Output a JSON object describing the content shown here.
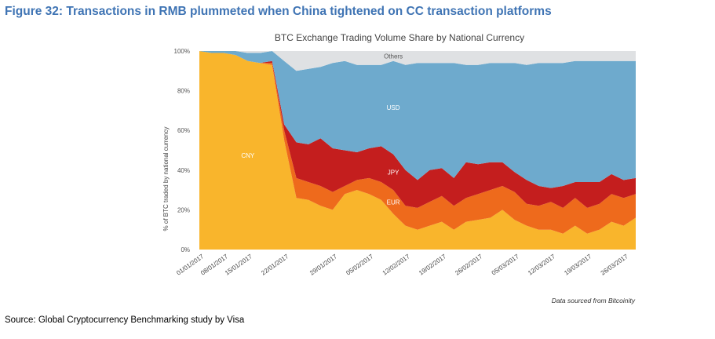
{
  "figure": {
    "title": "Figure 32: Transactions in RMB plummeted when China tightened on CC transaction platforms",
    "source": "Source: Global Cryptocurrency Benchmarking study by Visa"
  },
  "chart_data": {
    "type": "area",
    "stacked": true,
    "title": "BTC Exchange Trading Volume Share by National Currency",
    "ylabel": "% of BTC traded by national currency",
    "xlabel": "",
    "note": "Data sourced from Bitcoinity",
    "ylim": [
      0,
      100
    ],
    "yticks": [
      "0%",
      "20%",
      "40%",
      "60%",
      "80%",
      "100%"
    ],
    "x": [
      "01/01/2017",
      "04/01/2017",
      "08/01/2017",
      "12/01/2017",
      "15/01/2017",
      "18/01/2017",
      "20/01/2017",
      "22/01/2017",
      "23/01/2017",
      "25/01/2017",
      "27/01/2017",
      "29/01/2017",
      "31/01/2017",
      "02/02/2017",
      "05/02/2017",
      "08/02/2017",
      "10/02/2017",
      "12/02/2017",
      "15/02/2017",
      "17/02/2017",
      "19/02/2017",
      "22/02/2017",
      "24/02/2017",
      "26/02/2017",
      "01/03/2017",
      "03/03/2017",
      "05/03/2017",
      "08/03/2017",
      "10/03/2017",
      "12/03/2017",
      "15/03/2017",
      "17/03/2017",
      "19/03/2017",
      "22/03/2017",
      "24/03/2017",
      "26/03/2017",
      "28/03/2017"
    ],
    "xticks": [
      "01/01/2017",
      "08/01/2017",
      "15/01/2017",
      "22/01/2017",
      "29/01/2017",
      "05/02/2017",
      "12/02/2017",
      "19/02/2017",
      "26/02/2017",
      "05/03/2017",
      "12/03/2017",
      "19/03/2017",
      "26/03/2017"
    ],
    "series": [
      {
        "name": "CNY",
        "color": "#f9b52c",
        "values": [
          100,
          99,
          99,
          98,
          95,
          94,
          93,
          55,
          26,
          25,
          22,
          20,
          28,
          30,
          28,
          25,
          18,
          12,
          10,
          12,
          14,
          10,
          14,
          15,
          16,
          20,
          15,
          12,
          10,
          10,
          8,
          12,
          8,
          10,
          14,
          12,
          16
        ]
      },
      {
        "name": "EUR",
        "color": "#ee6a1c",
        "values": [
          0,
          0,
          0,
          0,
          0,
          0,
          1,
          5,
          10,
          9,
          10,
          9,
          4,
          5,
          8,
          9,
          12,
          10,
          11,
          12,
          13,
          12,
          12,
          13,
          14,
          12,
          14,
          11,
          12,
          14,
          13,
          14,
          13,
          13,
          14,
          14,
          12
        ]
      },
      {
        "name": "JPY",
        "color": "#c41e1e",
        "values": [
          0,
          0,
          0,
          0,
          0,
          0,
          1,
          3,
          18,
          19,
          24,
          22,
          18,
          14,
          15,
          18,
          18,
          18,
          14,
          16,
          14,
          14,
          18,
          15,
          14,
          12,
          10,
          12,
          10,
          7,
          11,
          8,
          13,
          11,
          10,
          9,
          8
        ]
      },
      {
        "name": "USD",
        "color": "#6eaacd",
        "values": [
          0,
          1,
          1,
          2,
          4,
          5,
          5,
          32,
          36,
          38,
          36,
          43,
          45,
          44,
          42,
          41,
          47,
          53,
          59,
          54,
          53,
          58,
          49,
          50,
          50,
          50,
          55,
          58,
          62,
          63,
          62,
          61,
          61,
          61,
          57,
          60,
          59
        ]
      },
      {
        "name": "Others",
        "color": "#dfe1e3",
        "values": [
          0,
          0,
          0,
          0,
          1,
          1,
          0,
          5,
          10,
          9,
          8,
          6,
          5,
          7,
          7,
          7,
          5,
          7,
          6,
          6,
          6,
          6,
          7,
          7,
          6,
          6,
          6,
          7,
          6,
          6,
          6,
          5,
          5,
          5,
          5,
          5,
          5
        ]
      }
    ],
    "legend": "inline labels",
    "grid": false
  }
}
